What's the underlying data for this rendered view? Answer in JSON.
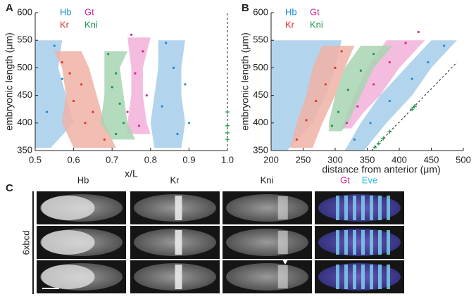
{
  "chart_data": [
    {
      "type": "band",
      "label": "A",
      "x_label": "x/L",
      "y_label": "embryonic length (μm)",
      "xlim": [
        0.5,
        1.0
      ],
      "xticks": [
        0.5,
        0.6,
        0.7,
        0.8,
        0.9,
        {
          "value": 1.0,
          "label": "1.0"
        }
      ],
      "ylim": [
        350,
        600
      ],
      "yticks": [
        350,
        400,
        450,
        500,
        550,
        600
      ],
      "series": [
        {
          "name": "Hb",
          "color": "#1a8bd6",
          "band_color": "#a6cdea",
          "bands": [
            {
              "y": [
                355,
                400,
                450,
                500,
                550
              ],
              "x_start": [
                0.5,
                0.5,
                0.5,
                0.5,
                0.5
              ],
              "x_end": [
                0.54,
                0.6,
                0.58,
                0.56,
                0.57
              ]
            },
            {
              "y": [
                355,
                400,
                450,
                500,
                550
              ],
              "x_start": [
                0.81,
                0.8,
                0.81,
                0.82,
                0.82
              ],
              "x_end": [
                0.88,
                0.89,
                0.88,
                0.88,
                0.89
              ]
            }
          ],
          "points": {
            "x": [
              0.55,
              0.57,
              0.53,
              0.84,
              0.86,
              0.89,
              0.83,
              0.9,
              0.87
            ],
            "y": [
              540,
              480,
              420,
              545,
              500,
              470,
              430,
              400,
              380
            ]
          }
        },
        {
          "name": "Gt",
          "color": "#d4289a",
          "band_color": "#f2b0d8",
          "bands": [
            {
              "y": [
                380,
                400,
                450,
                500,
                555
              ],
              "x_start": [
                0.74,
                0.74,
                0.75,
                0.75,
                0.74
              ],
              "x_end": [
                0.8,
                0.79,
                0.78,
                0.78,
                0.8
              ]
            }
          ],
          "points": {
            "x": [
              0.75,
              0.78,
              0.76,
              0.79,
              0.74,
              0.77
            ],
            "y": [
              560,
              530,
              490,
              450,
              420,
              395
            ]
          }
        },
        {
          "name": "Kr",
          "color": "#e5312b",
          "band_color": "#f0b2a4",
          "bands": [
            {
              "y": [
                355,
                400,
                450,
                500,
                530
              ],
              "x_start": [
                0.6,
                0.57,
                0.58,
                0.57,
                0.55
              ],
              "x_end": [
                0.71,
                0.68,
                0.66,
                0.64,
                0.62
              ]
            }
          ],
          "points": {
            "x": [
              0.57,
              0.59,
              0.62,
              0.6,
              0.65,
              0.63,
              0.68
            ],
            "y": [
              510,
              490,
              470,
              440,
              420,
              400,
              370
            ]
          }
        },
        {
          "name": "Kni",
          "color": "#18994a",
          "band_color": "#a7d5b1",
          "bands": [
            {
              "y": [
                370,
                400,
                450,
                500,
                530
              ],
              "x_start": [
                0.7,
                0.67,
                0.68,
                0.68,
                0.68
              ],
              "x_end": [
                0.76,
                0.74,
                0.73,
                0.72,
                0.74
              ]
            }
          ],
          "points": {
            "x": [
              0.69,
              0.71,
              0.7,
              0.72,
              0.73,
              0.71
            ],
            "y": [
              525,
              490,
              465,
              435,
              400,
              380
            ]
          }
        }
      ],
      "reference": {
        "x": [
          1.0,
          1.0
        ],
        "y": [
          350,
          600
        ],
        "color": "#222"
      },
      "reference_points": {
        "x": [
          1.0,
          1.0,
          1.0,
          1.0
        ],
        "y": [
          370,
          382,
          395,
          420
        ],
        "color": "#18994a"
      }
    },
    {
      "type": "band",
      "label": "B",
      "x_label": "distance from anterior (μm)",
      "y_label": "embryonic length (μm)",
      "xlim": [
        200,
        500
      ],
      "xticks": [
        200,
        250,
        300,
        350,
        400,
        450,
        500
      ],
      "ylim": [
        350,
        600
      ],
      "yticks": [
        350,
        400,
        450,
        500,
        550,
        600
      ],
      "series": [
        {
          "name": "Hb",
          "color": "#1a8bd6",
          "band_color": "#a6cdea",
          "bands": [
            {
              "y": [
                350,
                400,
                450,
                500,
                550
              ],
              "x_start": [
                200,
                200,
                200,
                200,
                200
              ],
              "x_end": [
                225,
                265,
                285,
                300,
                310
              ]
            },
            {
              "y": [
                350,
                400,
                450,
                500,
                550
              ],
              "x_start": [
                315,
                340,
                370,
                410,
                450
              ],
              "x_end": [
                345,
                380,
                420,
                450,
                490
              ]
            }
          ],
          "points": {
            "x": [
              330,
              355,
              385,
              420,
              445,
              470
            ],
            "y": [
              370,
              400,
              440,
              480,
              510,
              540
            ]
          }
        },
        {
          "name": "Gt",
          "color": "#d4289a",
          "band_color": "#f2b0d8",
          "bands": [
            {
              "y": [
                390,
                420,
                450,
                500,
                550
              ],
              "x_start": [
                310,
                320,
                330,
                350,
                380
              ],
              "x_end": [
                325,
                345,
                370,
                400,
                440
              ]
            }
          ],
          "points": {
            "x": [
              318,
              335,
              360,
              385,
              410,
              430
            ],
            "y": [
              400,
              430,
              470,
              510,
              545,
              565
            ]
          }
        },
        {
          "name": "Kr",
          "color": "#e5312b",
          "band_color": "#f0b2a4",
          "bands": [
            {
              "y": [
                355,
                400,
                450,
                500,
                540
              ],
              "x_start": [
                230,
                240,
                255,
                265,
                280
              ],
              "x_end": [
                265,
                280,
                300,
                315,
                330
              ]
            }
          ],
          "points": {
            "x": [
              240,
              255,
              270,
              285,
              300,
              310
            ],
            "y": [
              370,
              405,
              440,
              470,
              500,
              530
            ]
          }
        },
        {
          "name": "Kni",
          "color": "#18994a",
          "band_color": "#a7d5b1",
          "bands": [
            {
              "y": [
                385,
                400,
                450,
                500,
                540
              ],
              "x_start": [
                290,
                290,
                300,
                315,
                340
              ],
              "x_end": [
                310,
                320,
                340,
                360,
                390
              ]
            }
          ],
          "points": {
            "x": [
              295,
              305,
              320,
              340,
              360
            ],
            "y": [
              395,
              420,
              460,
              495,
              525
            ]
          }
        }
      ],
      "reference": {
        "x": [
          357,
          490
        ],
        "y": [
          350,
          510
        ],
        "color": "#222"
      },
      "reference_points": {
        "x": [
          362,
          368,
          375,
          385,
          420,
          424
        ],
        "y": [
          356,
          363,
          372,
          384,
          425,
          430
        ],
        "color": "#18994a"
      }
    }
  ],
  "panel_c": {
    "label": "C",
    "columns": [
      "Hb",
      "Kr",
      "Kni"
    ],
    "merge_labels": [
      {
        "text": "Gt",
        "color": "#d4289a"
      },
      {
        "text": "Eve",
        "color": "#2ab4e8"
      }
    ],
    "row_label": "6xbcd"
  }
}
